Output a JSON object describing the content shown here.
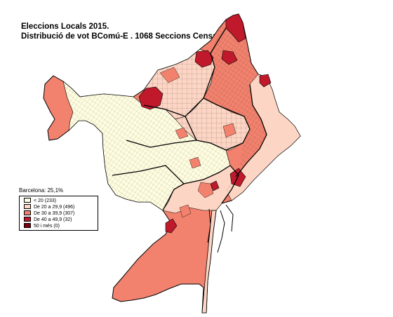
{
  "title": {
    "line1": "Eleccions Locals 2015.",
    "line2": "Distribució de vot BComú-E . 1068 Seccions Censals"
  },
  "summary": "Barcelona: 25,1%",
  "legend": [
    {
      "label": "< 20 (233)",
      "color": "#fffde0"
    },
    {
      "label": "De 20 a 29,9 (496)",
      "color": "#fdd5c4"
    },
    {
      "label": "De 30 a 39,9 (307)",
      "color": "#f2826e"
    },
    {
      "label": "De 40 a 49,9 (32)",
      "color": "#c0192c"
    },
    {
      "label": "50 i més (0)",
      "color": "#7a0010"
    }
  ],
  "colors": {
    "under20": "#fffde0",
    "r20_30": "#fdd5c4",
    "r30_40": "#f2826e",
    "r40_50": "#c0192c",
    "boundary": "#000000"
  }
}
